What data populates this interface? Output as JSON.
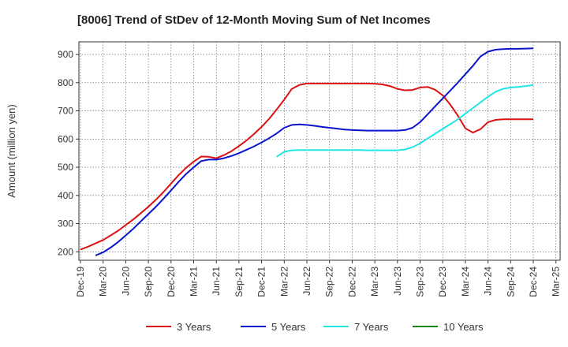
{
  "chart_data": {
    "type": "line",
    "title": "[8006]  Trend of StDev of 12-Month Moving Sum of Net Incomes",
    "xlabel": "",
    "ylabel": "Amount (million yen)",
    "x_tick_labels": [
      "Dec-19",
      "Mar-20",
      "Jun-20",
      "Sep-20",
      "Dec-20",
      "Mar-21",
      "Jun-21",
      "Sep-21",
      "Dec-21",
      "Mar-22",
      "Jun-22",
      "Sep-22",
      "Dec-22",
      "Mar-23",
      "Jun-23",
      "Sep-23",
      "Dec-23",
      "Mar-24",
      "Jun-24",
      "Sep-24",
      "Dec-24",
      "Mar-25"
    ],
    "y_ticks": [
      200,
      300,
      400,
      500,
      600,
      700,
      800,
      900
    ],
    "ylim": [
      170,
      945
    ],
    "grid": true,
    "legend_position": "bottom",
    "series": [
      {
        "name": "3 Years",
        "color": "#dd1111",
        "points": [
          [
            "Dec-19",
            208
          ],
          [
            "Jan-20",
            218
          ],
          [
            "Feb-20",
            230
          ],
          [
            "Mar-20",
            242
          ],
          [
            "Apr-20",
            258
          ],
          [
            "May-20",
            275
          ],
          [
            "Jun-20",
            295
          ],
          [
            "Jul-20",
            315
          ],
          [
            "Aug-20",
            337
          ],
          [
            "Sep-20",
            360
          ],
          [
            "Oct-20",
            385
          ],
          [
            "Nov-20",
            412
          ],
          [
            "Dec-20",
            442
          ],
          [
            "Jan-21",
            472
          ],
          [
            "Feb-21",
            498
          ],
          [
            "Mar-21",
            520
          ],
          [
            "Apr-21",
            538
          ],
          [
            "May-21",
            537
          ],
          [
            "Jun-21",
            532
          ],
          [
            "Jul-21",
            543
          ],
          [
            "Aug-21",
            557
          ],
          [
            "Sep-21",
            575
          ],
          [
            "Oct-21",
            595
          ],
          [
            "Nov-21",
            618
          ],
          [
            "Dec-21",
            643
          ],
          [
            "Jan-22",
            672
          ],
          [
            "Feb-22",
            705
          ],
          [
            "Mar-22",
            740
          ],
          [
            "Apr-22",
            778
          ],
          [
            "May-22",
            792
          ],
          [
            "Jun-22",
            797
          ],
          [
            "Jul-22",
            797
          ],
          [
            "Aug-22",
            797
          ],
          [
            "Sep-22",
            797
          ],
          [
            "Oct-22",
            797
          ],
          [
            "Nov-22",
            797
          ],
          [
            "Dec-22",
            797
          ],
          [
            "Jan-23",
            797
          ],
          [
            "Feb-23",
            797
          ],
          [
            "Mar-23",
            796
          ],
          [
            "Apr-23",
            794
          ],
          [
            "May-23",
            788
          ],
          [
            "Jun-23",
            778
          ],
          [
            "Jul-23",
            773
          ],
          [
            "Aug-23",
            774
          ],
          [
            "Sep-23",
            783
          ],
          [
            "Oct-23",
            785
          ],
          [
            "Nov-23",
            775
          ],
          [
            "Dec-23",
            755
          ],
          [
            "Jan-24",
            722
          ],
          [
            "Feb-24",
            683
          ],
          [
            "Mar-24",
            638
          ],
          [
            "Apr-24",
            623
          ],
          [
            "May-24",
            635
          ],
          [
            "Jun-24",
            660
          ],
          [
            "Jul-24",
            668
          ],
          [
            "Aug-24",
            670
          ],
          [
            "Sep-24",
            670
          ],
          [
            "Oct-24",
            670
          ],
          [
            "Nov-24",
            670
          ],
          [
            "Dec-24",
            670
          ]
        ]
      },
      {
        "name": "5 Years",
        "color": "#0a14cc",
        "points": [
          [
            "Feb-20",
            187
          ],
          [
            "Mar-20",
            198
          ],
          [
            "Apr-20",
            215
          ],
          [
            "May-20",
            235
          ],
          [
            "Jun-20",
            258
          ],
          [
            "Jul-20",
            282
          ],
          [
            "Aug-20",
            308
          ],
          [
            "Sep-20",
            334
          ],
          [
            "Oct-20",
            360
          ],
          [
            "Nov-20",
            388
          ],
          [
            "Dec-20",
            418
          ],
          [
            "Jan-21",
            448
          ],
          [
            "Feb-21",
            476
          ],
          [
            "Mar-21",
            500
          ],
          [
            "Apr-21",
            522
          ],
          [
            "May-21",
            527
          ],
          [
            "Jun-21",
            527
          ],
          [
            "Jul-21",
            532
          ],
          [
            "Aug-21",
            540
          ],
          [
            "Sep-21",
            550
          ],
          [
            "Oct-21",
            562
          ],
          [
            "Nov-21",
            574
          ],
          [
            "Dec-21",
            588
          ],
          [
            "Jan-22",
            603
          ],
          [
            "Feb-22",
            620
          ],
          [
            "Mar-22",
            640
          ],
          [
            "Apr-22",
            650
          ],
          [
            "May-22",
            652
          ],
          [
            "Jun-22",
            650
          ],
          [
            "Jul-22",
            647
          ],
          [
            "Aug-22",
            643
          ],
          [
            "Sep-22",
            640
          ],
          [
            "Oct-22",
            637
          ],
          [
            "Nov-22",
            634
          ],
          [
            "Dec-22",
            632
          ],
          [
            "Jan-23",
            631
          ],
          [
            "Feb-23",
            630
          ],
          [
            "Mar-23",
            630
          ],
          [
            "Apr-23",
            630
          ],
          [
            "May-23",
            630
          ],
          [
            "Jun-23",
            630
          ],
          [
            "Jul-23",
            632
          ],
          [
            "Aug-23",
            640
          ],
          [
            "Sep-23",
            660
          ],
          [
            "Oct-23",
            688
          ],
          [
            "Nov-23",
            716
          ],
          [
            "Dec-23",
            744
          ],
          [
            "Jan-24",
            772
          ],
          [
            "Feb-24",
            800
          ],
          [
            "Mar-24",
            830
          ],
          [
            "Apr-24",
            860
          ],
          [
            "May-24",
            893
          ],
          [
            "Jun-24",
            910
          ],
          [
            "Jul-24",
            917
          ],
          [
            "Aug-24",
            919
          ],
          [
            "Sep-24",
            920
          ],
          [
            "Oct-24",
            920
          ],
          [
            "Nov-24",
            921
          ],
          [
            "Dec-24",
            922
          ]
        ]
      },
      {
        "name": "7 Years",
        "color": "#22e5e5",
        "points": [
          [
            "Feb-22",
            537
          ],
          [
            "Mar-22",
            555
          ],
          [
            "Apr-22",
            560
          ],
          [
            "May-22",
            561
          ],
          [
            "Jun-22",
            561
          ],
          [
            "Jul-22",
            561
          ],
          [
            "Aug-22",
            561
          ],
          [
            "Sep-22",
            561
          ],
          [
            "Oct-22",
            561
          ],
          [
            "Nov-22",
            561
          ],
          [
            "Dec-22",
            561
          ],
          [
            "Jan-23",
            561
          ],
          [
            "Feb-23",
            560
          ],
          [
            "Mar-23",
            560
          ],
          [
            "Apr-23",
            560
          ],
          [
            "May-23",
            560
          ],
          [
            "Jun-23",
            560
          ],
          [
            "Jul-23",
            563
          ],
          [
            "Aug-23",
            571
          ],
          [
            "Sep-23",
            585
          ],
          [
            "Oct-23",
            602
          ],
          [
            "Nov-23",
            619
          ],
          [
            "Dec-23",
            636
          ],
          [
            "Jan-24",
            653
          ],
          [
            "Feb-24",
            670
          ],
          [
            "Mar-24",
            690
          ],
          [
            "Apr-24",
            710
          ],
          [
            "May-24",
            730
          ],
          [
            "Jun-24",
            750
          ],
          [
            "Jul-24",
            768
          ],
          [
            "Aug-24",
            778
          ],
          [
            "Sep-24",
            783
          ],
          [
            "Oct-24",
            785
          ],
          [
            "Nov-24",
            788
          ],
          [
            "Dec-24",
            792
          ]
        ]
      },
      {
        "name": "10 Years",
        "color": "#118811",
        "points": []
      }
    ]
  }
}
